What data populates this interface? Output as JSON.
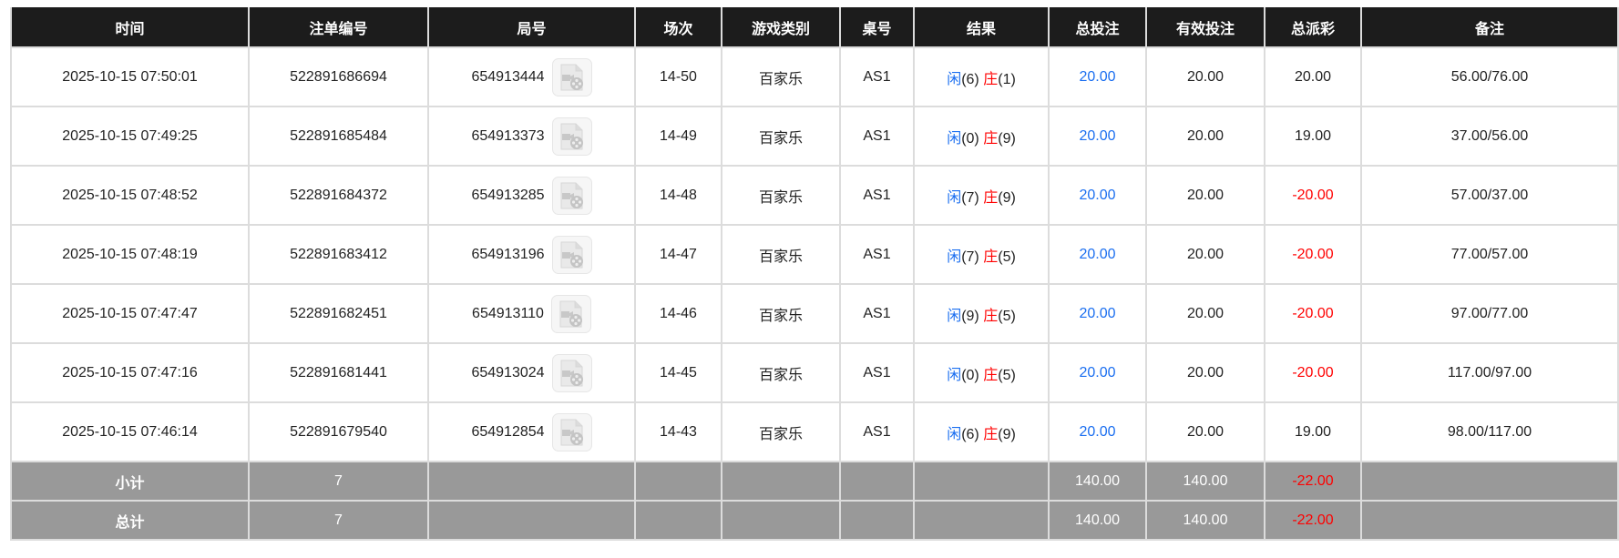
{
  "columns": [
    "时间",
    "注单编号",
    "局号",
    "场次",
    "游戏类别",
    "桌号",
    "结果",
    "总投注",
    "有效投注",
    "总派彩",
    "备注"
  ],
  "colors": {
    "player": "#1a6ef0",
    "banker": "#ff0000",
    "negative": "#ff0000",
    "header_bg": "#1c1c1c",
    "summary_bg": "#999999"
  },
  "rows": [
    {
      "time": "2025-10-15 07:50:01",
      "bet_id": "522891686694",
      "round_id": "654913444",
      "shoe": "14-50",
      "game": "百家乐",
      "table": "AS1",
      "player_label": "闲",
      "player": "(6)",
      "banker_label": "庄",
      "banker": "(1)",
      "total_bet": "20.00",
      "valid_bet": "20.00",
      "payout": "20.00",
      "payout_negative": false,
      "note": "56.00/76.00"
    },
    {
      "time": "2025-10-15 07:49:25",
      "bet_id": "522891685484",
      "round_id": "654913373",
      "shoe": "14-49",
      "game": "百家乐",
      "table": "AS1",
      "player_label": "闲",
      "player": "(0)",
      "banker_label": "庄",
      "banker": "(9)",
      "total_bet": "20.00",
      "valid_bet": "20.00",
      "payout": "19.00",
      "payout_negative": false,
      "note": "37.00/56.00"
    },
    {
      "time": "2025-10-15 07:48:52",
      "bet_id": "522891684372",
      "round_id": "654913285",
      "shoe": "14-48",
      "game": "百家乐",
      "table": "AS1",
      "player_label": "闲",
      "player": "(7)",
      "banker_label": "庄",
      "banker": "(9)",
      "total_bet": "20.00",
      "valid_bet": "20.00",
      "payout": "-20.00",
      "payout_negative": true,
      "note": "57.00/37.00"
    },
    {
      "time": "2025-10-15 07:48:19",
      "bet_id": "522891683412",
      "round_id": "654913196",
      "shoe": "14-47",
      "game": "百家乐",
      "table": "AS1",
      "player_label": "闲",
      "player": "(7)",
      "banker_label": "庄",
      "banker": "(5)",
      "total_bet": "20.00",
      "valid_bet": "20.00",
      "payout": "-20.00",
      "payout_negative": true,
      "note": "77.00/57.00"
    },
    {
      "time": "2025-10-15 07:47:47",
      "bet_id": "522891682451",
      "round_id": "654913110",
      "shoe": "14-46",
      "game": "百家乐",
      "table": "AS1",
      "player_label": "闲",
      "player": "(9)",
      "banker_label": "庄",
      "banker": "(5)",
      "total_bet": "20.00",
      "valid_bet": "20.00",
      "payout": "-20.00",
      "payout_negative": true,
      "note": "97.00/77.00"
    },
    {
      "time": "2025-10-15 07:47:16",
      "bet_id": "522891681441",
      "round_id": "654913024",
      "shoe": "14-45",
      "game": "百家乐",
      "table": "AS1",
      "player_label": "闲",
      "player": "(0)",
      "banker_label": "庄",
      "banker": "(5)",
      "total_bet": "20.00",
      "valid_bet": "20.00",
      "payout": "-20.00",
      "payout_negative": true,
      "note": "117.00/97.00"
    },
    {
      "time": "2025-10-15 07:46:14",
      "bet_id": "522891679540",
      "round_id": "654912854",
      "shoe": "14-43",
      "game": "百家乐",
      "table": "AS1",
      "player_label": "闲",
      "player": "(6)",
      "banker_label": "庄",
      "banker": "(9)",
      "total_bet": "20.00",
      "valid_bet": "20.00",
      "payout": "19.00",
      "payout_negative": false,
      "note": "98.00/117.00"
    }
  ],
  "subtotal": {
    "label": "小计",
    "count": "7",
    "total_bet": "140.00",
    "valid_bet": "140.00",
    "payout": "-22.00"
  },
  "grand_total": {
    "label": "总计",
    "count": "7",
    "total_bet": "140.00",
    "valid_bet": "140.00",
    "payout": "-22.00"
  },
  "icons": {
    "replay": "video-replay-icon"
  }
}
